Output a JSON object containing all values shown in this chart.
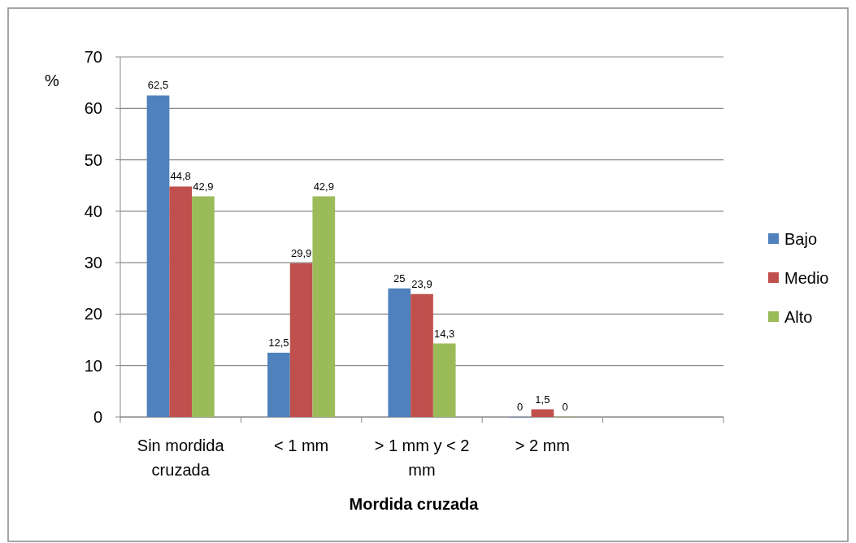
{
  "chart_data": {
    "type": "bar",
    "ylabel": "%",
    "xlabel": "Mordida cruzada",
    "categories": [
      "Sin mordida cruzada",
      "< 1 mm",
      "> 1 mm y < 2 mm",
      "> 2 mm",
      null
    ],
    "series": [
      {
        "name": "Bajo",
        "color": "#4f81bd",
        "values": [
          62.5,
          12.5,
          25,
          0,
          null
        ],
        "value_labels": [
          "62,5",
          "12,5",
          "25",
          "0",
          null
        ]
      },
      {
        "name": "Medio",
        "color": "#c0504d",
        "values": [
          44.8,
          29.9,
          23.9,
          1.5,
          null
        ],
        "value_labels": [
          "44,8",
          "29,9",
          "23,9",
          "1,5",
          null
        ]
      },
      {
        "name": "Alto",
        "color": "#9bbb59",
        "values": [
          42.9,
          42.9,
          14.3,
          0,
          null
        ],
        "value_labels": [
          "42,9",
          "42,9",
          "14,3",
          "0",
          null
        ]
      }
    ],
    "ylim": [
      0,
      70
    ],
    "yticks": [
      0,
      10,
      20,
      30,
      40,
      50,
      60,
      70
    ],
    "grid": "y",
    "legend": "right"
  }
}
